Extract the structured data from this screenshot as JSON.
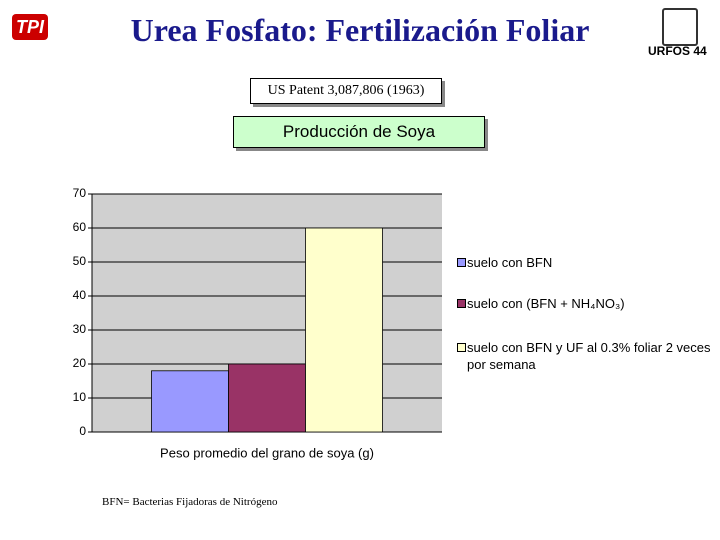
{
  "header": {
    "title": "Urea Fosfato: Fertilización Foliar",
    "logo_left": "TPI",
    "logo_right": "URFOS 44",
    "patent": "US Patent  3,087,806 (1963)"
  },
  "chart_data": {
    "type": "bar",
    "title": "Producción de Soya",
    "categories": [
      "Peso promedio del grano de soya (g)"
    ],
    "series": [
      {
        "name": "suelo con BFN",
        "color": "#9999ff",
        "values": [
          18
        ]
      },
      {
        "name": "suelo con (BFN + NH₄NO₃)",
        "color": "#993366",
        "values": [
          20
        ]
      },
      {
        "name": "suelo con BFN  y UF al 0.3% foliar 2 veces por semana",
        "color": "#ffffcc",
        "values": [
          60
        ]
      }
    ],
    "ylim": [
      0,
      70
    ],
    "yticks": [
      0,
      10,
      20,
      30,
      40,
      50,
      60,
      70
    ],
    "grid": true,
    "legend": "right"
  },
  "footnote": "BFN= Bacterias Fijadoras de Nitrógeno"
}
